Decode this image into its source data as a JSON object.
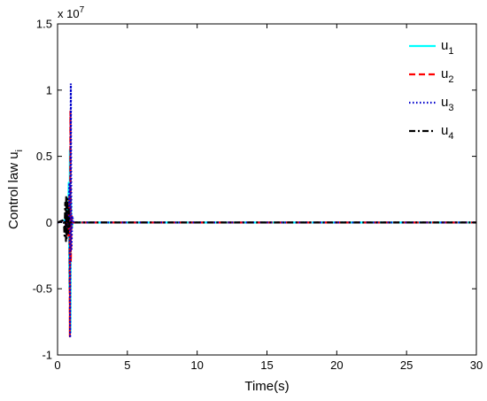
{
  "chart_data": {
    "type": "line",
    "xlabel": "Time(s)",
    "ylabel_main": "Control law u",
    "ylabel_sub": "i",
    "exponent_base": "x 10",
    "exponent_power": "7",
    "xlim": [
      0,
      30
    ],
    "ylim": [
      -1.0,
      1.5
    ],
    "y_scale_factor": 10000000,
    "xticks": [
      0,
      5,
      10,
      15,
      20,
      25,
      30
    ],
    "xtick_labels": [
      "0",
      "5",
      "10",
      "15",
      "20",
      "25",
      "30"
    ],
    "yticks": [
      -1.0,
      -0.5,
      0,
      0.5,
      1.0,
      1.5
    ],
    "ytick_labels": [
      "-1",
      "-0.5",
      "0",
      "0.5",
      "1",
      "1.5"
    ],
    "grid": false,
    "legend_position": "top-right",
    "series": [
      {
        "name": "u",
        "subscript": "1",
        "color": "#00ffff",
        "style": "solid",
        "points": [
          [
            0,
            0
          ],
          [
            0.55,
            0.02
          ],
          [
            0.6,
            -0.05
          ],
          [
            0.7,
            0.15
          ],
          [
            0.75,
            -0.08
          ],
          [
            0.8,
            0.3
          ],
          [
            0.85,
            -0.5
          ],
          [
            0.88,
            0.55
          ],
          [
            0.92,
            -0.83
          ],
          [
            0.95,
            0.2
          ],
          [
            1.0,
            -0.05
          ],
          [
            1.1,
            0.0
          ],
          [
            30,
            0
          ]
        ]
      },
      {
        "name": "u",
        "subscript": "2",
        "color": "#ff0000",
        "style": "dashed",
        "points": [
          [
            0,
            0
          ],
          [
            0.55,
            0.02
          ],
          [
            0.6,
            -0.05
          ],
          [
            0.7,
            0.1
          ],
          [
            0.78,
            -0.1
          ],
          [
            0.85,
            0.2
          ],
          [
            0.88,
            -0.86
          ],
          [
            0.92,
            0.84
          ],
          [
            0.95,
            -0.3
          ],
          [
            1.0,
            0.05
          ],
          [
            1.1,
            0.0
          ],
          [
            30,
            0
          ]
        ]
      },
      {
        "name": "u",
        "subscript": "3",
        "color": "#0000cc",
        "style": "dotted",
        "points": [
          [
            0,
            0
          ],
          [
            0.55,
            0.01
          ],
          [
            0.6,
            -0.03
          ],
          [
            0.7,
            0.08
          ],
          [
            0.78,
            -0.05
          ],
          [
            0.85,
            0.3
          ],
          [
            0.9,
            -0.87
          ],
          [
            0.95,
            1.05
          ],
          [
            1.0,
            -0.2
          ],
          [
            1.05,
            0.05
          ],
          [
            1.15,
            0.0
          ],
          [
            30,
            0
          ]
        ]
      },
      {
        "name": "u",
        "subscript": "4",
        "color": "#000000",
        "style": "dashdot",
        "points": [
          [
            0,
            0
          ],
          [
            0.45,
            0.02
          ],
          [
            0.5,
            -0.1
          ],
          [
            0.55,
            0.15
          ],
          [
            0.6,
            -0.14
          ],
          [
            0.62,
            0.2
          ],
          [
            0.65,
            -0.12
          ],
          [
            0.7,
            0.18
          ],
          [
            0.75,
            -0.08
          ],
          [
            0.8,
            0.1
          ],
          [
            0.85,
            -0.03
          ],
          [
            0.9,
            0.0
          ],
          [
            30,
            0
          ]
        ]
      }
    ]
  }
}
